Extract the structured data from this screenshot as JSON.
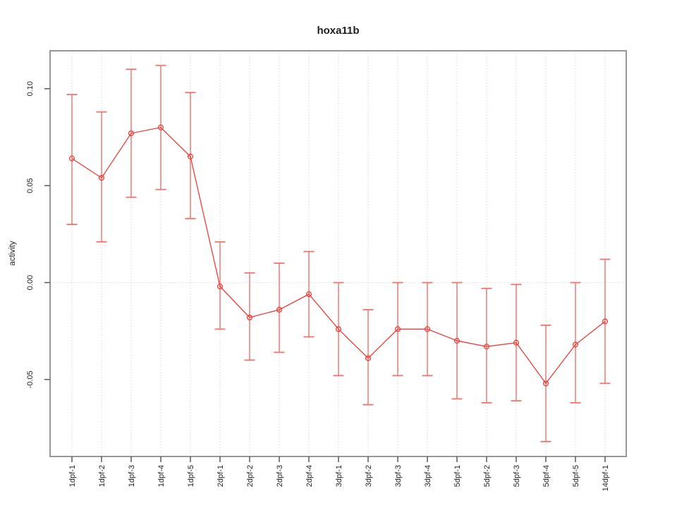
{
  "title": "hoxa11b",
  "chart_data": {
    "type": "line",
    "title": "hoxa11b",
    "xlabel": "",
    "ylabel": "activity",
    "legend": "none",
    "grid": "vertical dotted gridline per category plus dotted horizontal line at y=0",
    "marker": "open-circle",
    "error_bars": true,
    "categories": [
      "1dpf-1",
      "1dpf-2",
      "1dpf-3",
      "1dpf-4",
      "1dpf-5",
      "2dpf-1",
      "2dpf-2",
      "2dpf-3",
      "2dpf-4",
      "3dpf-1",
      "3dpf-2",
      "3dpf-3",
      "3dpf-4",
      "5dpf-1",
      "5dpf-2",
      "5dpf-3",
      "5dpf-4",
      "5dpf-5",
      "14dpf-1"
    ],
    "series": [
      {
        "name": "activity",
        "values": [
          0.064,
          0.054,
          0.077,
          0.08,
          0.065,
          -0.002,
          -0.018,
          -0.014,
          -0.006,
          -0.024,
          -0.039,
          -0.024,
          -0.024,
          -0.03,
          -0.033,
          -0.031,
          -0.052,
          -0.032,
          -0.02
        ],
        "error_upper": [
          0.097,
          0.088,
          0.11,
          0.112,
          0.098,
          0.021,
          0.005,
          0.01,
          0.016,
          0.0,
          -0.014,
          0.0,
          0.0,
          0.0,
          -0.003,
          -0.001,
          -0.022,
          0.0,
          0.012
        ],
        "error_lower": [
          0.03,
          0.021,
          0.044,
          0.048,
          0.033,
          -0.024,
          -0.04,
          -0.036,
          -0.028,
          -0.048,
          -0.063,
          -0.048,
          -0.048,
          -0.06,
          -0.062,
          -0.061,
          -0.082,
          -0.062,
          -0.052
        ]
      }
    ],
    "yticks": [
      0.1,
      0.05,
      0.0,
      -0.05
    ],
    "ytick_labels": [
      "0.10",
      "0.05",
      "0.00",
      "-0.05"
    ],
    "ylim": [
      -0.09,
      0.12
    ],
    "colors": {
      "series": "#ed3e38",
      "error_bar": "#f59a95",
      "error_cap": "#f0736c",
      "grid": "#d7d7d7",
      "zero_line": "#dcdcdc",
      "box": "#8c8c8c",
      "tick": "#5a5a5a",
      "text": "#1f1f1f",
      "background": "#ffffff"
    }
  }
}
